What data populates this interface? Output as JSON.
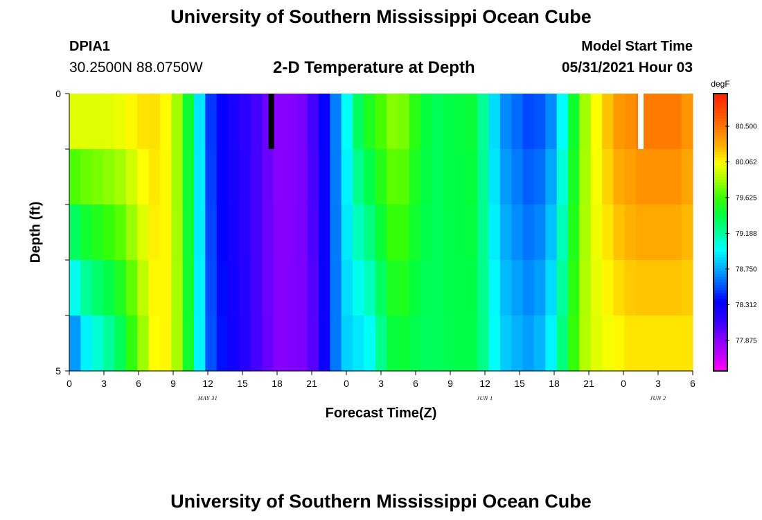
{
  "header": {
    "title_top": "University of Southern Mississippi Ocean Cube",
    "title_bottom": "University of Southern Mississippi Ocean Cube",
    "station_id": "DPIA1",
    "station_coords": "30.2500N  88.0750W",
    "subtitle": "2-D Temperature at Depth",
    "model_start_label": "Model Start Time",
    "model_start_time": "05/31/2021 Hour 03"
  },
  "chart_data": {
    "type": "heatmap",
    "title": "2-D Temperature at Depth",
    "xlabel": "Forecast Time(Z)",
    "ylabel": "Depth (ft)",
    "units": "degF",
    "x_tick_labels": [
      "0",
      "3",
      "6",
      "9",
      "12",
      "15",
      "18",
      "21",
      "0",
      "3",
      "6",
      "9",
      "12",
      "15",
      "18",
      "21",
      "0",
      "3",
      "6"
    ],
    "date_labels": [
      {
        "text": "MAY 31",
        "at_tick": 4
      },
      {
        "text": "JUN 1",
        "at_tick": 12
      },
      {
        "text": "JUN 2",
        "at_tick": 17
      }
    ],
    "y_tick_labels": [
      "0",
      "5"
    ],
    "ylim": [
      0,
      5
    ],
    "depth_rows": 5,
    "hours": [
      0,
      1,
      2,
      3,
      4,
      5,
      6,
      7,
      8,
      9,
      10,
      11,
      12,
      13,
      14,
      15,
      16,
      17,
      18,
      19,
      20,
      21,
      22,
      23,
      24,
      25,
      26,
      27,
      28,
      29,
      30,
      31,
      32,
      33,
      34,
      35,
      36,
      37,
      38,
      39,
      40,
      41,
      42,
      43,
      44,
      45,
      46,
      47,
      48,
      49,
      50,
      51,
      52,
      53,
      54
    ],
    "surface_cells": 1,
    "surface_values": [
      79.98,
      79.98,
      79.98,
      79.99,
      80.01,
      80.07,
      80.12,
      80.13,
      80.06,
      79.84,
      79.46,
      78.92,
      78.47,
      78.33,
      78.22,
      78.14,
      78.07,
      77.96,
      77.88,
      77.89,
      77.93,
      78.07,
      78.31,
      78.64,
      78.99,
      79.34,
      79.52,
      79.65,
      79.78,
      79.75,
      79.56,
      79.42,
      79.36,
      79.4,
      79.42,
      79.44,
      79.21,
      78.89,
      78.67,
      78.59,
      78.51,
      78.54,
      78.67,
      79.0,
      79.46,
      79.84,
      80.05,
      80.21,
      80.36,
      80.4,
      80.47,
      80.47,
      80.47,
      80.47,
      80.37
    ],
    "bottom_values": [
      78.71,
      78.95,
      79.08,
      79.2,
      79.36,
      79.58,
      79.83,
      80.05,
      80.07,
      79.86,
      79.48,
      78.96,
      78.53,
      78.38,
      78.26,
      78.17,
      78.07,
      77.97,
      77.89,
      77.9,
      77.92,
      78.02,
      78.28,
      78.62,
      78.86,
      78.92,
      79.0,
      79.23,
      79.43,
      79.45,
      79.38,
      79.35,
      79.36,
      79.38,
      79.39,
      79.39,
      79.24,
      79.0,
      78.84,
      78.77,
      78.72,
      78.78,
      78.96,
      79.27,
      79.6,
      79.88,
      79.98,
      80.03,
      80.07,
      80.12,
      80.12,
      80.12,
      80.12,
      80.12,
      80.12
    ],
    "markers": [
      {
        "hour": 17.5,
        "color": "#000000"
      },
      {
        "hour": 49.5,
        "color": "#ffffff"
      }
    ],
    "colorbar": {
      "label": "degF",
      "min": 77.5,
      "max": 80.9,
      "ticks": [
        "80.500",
        "80.062",
        "79.625",
        "79.188",
        "78.750",
        "78.312",
        "77.875"
      ],
      "tick_values": [
        80.5,
        80.062,
        79.625,
        79.188,
        78.75,
        78.312,
        77.875
      ],
      "colors": [
        "#ff00ff",
        "#bb00ff",
        "#7a00ff",
        "#2a00ff",
        "#0000ff",
        "#0060ff",
        "#00b4ff",
        "#00ffff",
        "#00ff99",
        "#00ff40",
        "#3bff00",
        "#a0ff00",
        "#ffff00",
        "#ffb000",
        "#ff7a00",
        "#ff4a00",
        "#ff2000"
      ]
    }
  }
}
